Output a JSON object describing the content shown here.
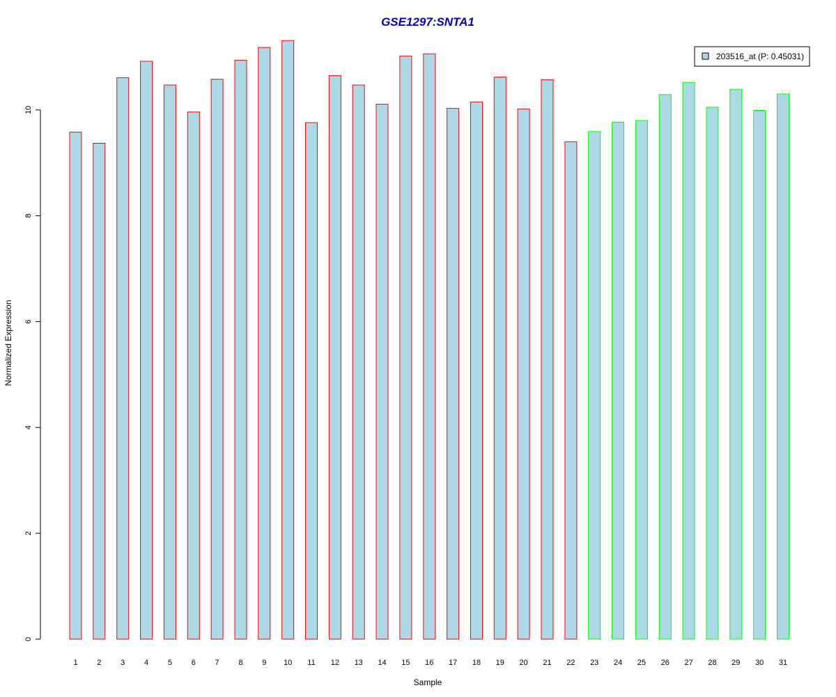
{
  "chart_data": {
    "type": "bar",
    "title": "GSE1297:SNTA1",
    "xlabel": "Sample",
    "ylabel": "Normalized Expression",
    "ylim": [
      0,
      11.3
    ],
    "y_ticks": [
      "0",
      "2",
      "4",
      "6",
      "8",
      "10"
    ],
    "categories": [
      "1",
      "2",
      "3",
      "4",
      "5",
      "6",
      "7",
      "8",
      "9",
      "10",
      "11",
      "12",
      "13",
      "14",
      "15",
      "16",
      "17",
      "18",
      "19",
      "20",
      "21",
      "22",
      "23",
      "24",
      "25",
      "26",
      "27",
      "28",
      "29",
      "30",
      "31"
    ],
    "values": [
      9.58,
      9.37,
      10.61,
      10.92,
      10.47,
      9.96,
      10.58,
      10.94,
      11.18,
      11.31,
      9.76,
      10.65,
      10.47,
      10.11,
      11.02,
      11.06,
      10.03,
      10.15,
      10.62,
      10.02,
      10.57,
      9.4,
      9.59,
      9.77,
      9.8,
      10.29,
      10.52,
      10.05,
      10.39,
      9.99,
      10.3
    ],
    "groups": [
      "red",
      "red",
      "red",
      "red",
      "red",
      "red",
      "red",
      "red",
      "red",
      "red",
      "red",
      "red",
      "red",
      "red",
      "red",
      "red",
      "red",
      "red",
      "red",
      "red",
      "red",
      "red",
      "green",
      "green",
      "green",
      "green",
      "green",
      "green",
      "green",
      "green",
      "green"
    ],
    "legend": {
      "entries": [
        {
          "label": "203516_at (P: 0.45031)",
          "color": "#add8e6"
        }
      ],
      "placement": "top-right"
    },
    "colors": {
      "bar_fill": "#add8e6",
      "border_red": "#ff0000",
      "border_green": "#00ff00",
      "title": "#0000cd"
    },
    "grid": false
  }
}
